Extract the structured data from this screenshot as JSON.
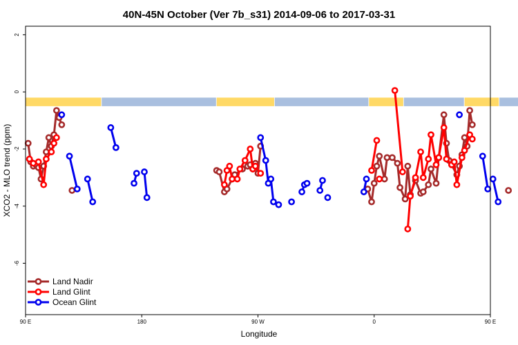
{
  "chart_data": {
    "type": "line",
    "title": "40N-45N October (Ver 7b_s31)   2014-09-06 to 2017-03-31",
    "xlabel": "Longitude",
    "ylabel": "XCO2 - MLO trend (ppm)",
    "xlim": [
      90,
      450
    ],
    "ylim": [
      -7.8,
      2.3
    ],
    "x_ticks": [
      {
        "value": 90,
        "label": "90 E"
      },
      {
        "value": 180,
        "label": "180"
      },
      {
        "value": 270,
        "label": "90 W"
      },
      {
        "value": 360,
        "label": "0"
      },
      {
        "value": 450,
        "label": "90 E"
      },
      {
        "value": 540,
        "label": "180"
      }
    ],
    "y_ticks": [
      2,
      0,
      -2,
      -4,
      -6
    ],
    "legend_position": "bottom-left",
    "land_sea_band": {
      "y_range": [
        -0.5,
        -0.2
      ],
      "land_color": "#FFD966",
      "sea_color": "#A9BFDF",
      "land_segments": [
        [
          90,
          148
        ],
        [
          238,
          282
        ],
        [
          356,
          382
        ],
        [
          430,
          456
        ]
      ],
      "sea_segments": [
        [
          149,
          237
        ],
        [
          283,
          355
        ],
        [
          383,
          429
        ],
        [
          457,
          492
        ]
      ]
    },
    "series": [
      {
        "name": "Land Nadir",
        "color": "#A52A2A",
        "segments": [
          [
            [
              92,
              -1.8
            ],
            [
              94,
              -2.45
            ],
            [
              96,
              -2.6
            ],
            [
              98,
              -2.55
            ],
            [
              100,
              -2.65
            ],
            [
              102,
              -3.05
            ],
            [
              104,
              -2.6
            ],
            [
              106,
              -2.1
            ],
            [
              108,
              -1.6
            ],
            [
              110,
              -1.9
            ],
            [
              112,
              -1.5
            ],
            [
              114,
              -0.65
            ],
            [
              116,
              -0.9
            ],
            [
              118,
              -1.15
            ]
          ],
          [
            [
              126,
              -3.45
            ]
          ],
          [
            [
              238,
              -2.75
            ],
            [
              240,
              -2.8
            ],
            [
              244,
              -3.5
            ],
            [
              246,
              -3.4
            ],
            [
              250,
              -3.05
            ],
            [
              252,
              -2.9
            ],
            [
              258,
              -2.7
            ],
            [
              260,
              -2.55
            ],
            [
              262,
              -2.6
            ],
            [
              264,
              -2.55
            ],
            [
              266,
              -2.7
            ],
            [
              268,
              -2.5
            ],
            [
              270,
              -2.85
            ],
            [
              272,
              -1.9
            ]
          ],
          [
            [
              355,
              -3.4
            ],
            [
              358,
              -3.85
            ],
            [
              360,
              -3.2
            ],
            [
              362,
              -2.6
            ],
            [
              364,
              -2.25
            ],
            [
              368,
              -3.05
            ],
            [
              370,
              -2.3
            ],
            [
              374,
              -2.3
            ],
            [
              378,
              -2.5
            ],
            [
              380,
              -3.35
            ],
            [
              384,
              -3.75
            ],
            [
              386,
              -2.6
            ],
            [
              388,
              -3.6
            ],
            [
              392,
              -3.1
            ],
            [
              396,
              -3.55
            ],
            [
              398,
              -3.5
            ],
            [
              402,
              -3.25
            ],
            [
              404,
              -2.7
            ],
            [
              408,
              -3.2
            ],
            [
              410,
              -2.3
            ],
            [
              414,
              -0.8
            ],
            [
              416,
              -1.8
            ],
            [
              418,
              -2.4
            ],
            [
              420,
              -2.55
            ],
            [
              424,
              -2.9
            ],
            [
              426,
              -2.6
            ],
            [
              428,
              -2.2
            ],
            [
              430,
              -1.6
            ],
            [
              432,
              -1.9
            ],
            [
              434,
              -0.65
            ],
            [
              436,
              -1.15
            ]
          ],
          [
            [
              464,
              -3.45
            ]
          ]
        ]
      },
      {
        "name": "Land Glint",
        "color": "#FF0000",
        "segments": [
          [
            [
              93,
              -2.35
            ],
            [
              96,
              -2.5
            ],
            [
              100,
              -2.45
            ],
            [
              104,
              -3.25
            ],
            [
              106,
              -2.35
            ],
            [
              110,
              -2.1
            ],
            [
              112,
              -1.8
            ],
            [
              114,
              -1.6
            ]
          ],
          [
            [
              244,
              -3.25
            ],
            [
              246,
              -2.75
            ],
            [
              248,
              -2.6
            ],
            [
              250,
              -3.05
            ],
            [
              254,
              -3.05
            ],
            [
              256,
              -2.7
            ],
            [
              260,
              -2.4
            ],
            [
              264,
              -2.0
            ],
            [
              266,
              -2.7
            ],
            [
              268,
              -2.6
            ],
            [
              272,
              -2.85
            ]
          ],
          [
            [
              358,
              -2.75
            ],
            [
              362,
              -1.7
            ]
          ],
          [
            [
              364,
              -3.05
            ]
          ],
          [
            [
              376,
              0.05
            ],
            [
              382,
              -2.8
            ]
          ],
          [
            [
              386,
              -4.8
            ],
            [
              388,
              -3.65
            ],
            [
              392,
              -3.0
            ],
            [
              396,
              -2.1
            ],
            [
              398,
              -3.0
            ],
            [
              402,
              -2.35
            ],
            [
              404,
              -1.5
            ],
            [
              408,
              -2.55
            ],
            [
              410,
              -2.3
            ],
            [
              414,
              -1.25
            ],
            [
              416,
              -2.35
            ],
            [
              420,
              -2.55
            ],
            [
              422,
              -2.45
            ],
            [
              424,
              -3.25
            ],
            [
              428,
              -2.3
            ],
            [
              430,
              -2.05
            ],
            [
              434,
              -1.5
            ],
            [
              436,
              -1.65
            ]
          ]
        ]
      },
      {
        "name": "Ocean Glint",
        "color": "#0000EE",
        "segments": [
          [
            [
              118,
              -0.8
            ]
          ],
          [
            [
              124,
              -2.25
            ],
            [
              130,
              -3.4
            ]
          ],
          [
            [
              138,
              -3.05
            ],
            [
              142,
              -3.85
            ]
          ],
          [
            [
              156,
              -1.25
            ],
            [
              160,
              -1.95
            ]
          ],
          [
            [
              174,
              -3.2
            ],
            [
              176,
              -2.85
            ]
          ],
          [
            [
              182,
              -2.8
            ],
            [
              184,
              -3.7
            ]
          ],
          [
            [
              272,
              -1.6
            ],
            [
              276,
              -2.4
            ],
            [
              278,
              -3.2
            ],
            [
              280,
              -3.05
            ],
            [
              282,
              -3.85
            ],
            [
              286,
              -3.95
            ]
          ],
          [
            [
              296,
              -3.85
            ]
          ],
          [
            [
              304,
              -3.5
            ],
            [
              306,
              -3.25
            ],
            [
              308,
              -3.2
            ]
          ],
          [
            [
              318,
              -3.45
            ],
            [
              320,
              -3.1
            ]
          ],
          [
            [
              324,
              -3.7
            ]
          ],
          [
            [
              352,
              -3.5
            ],
            [
              354,
              -3.05
            ]
          ],
          [
            [
              426,
              -0.8
            ]
          ],
          [
            [
              444,
              -2.25
            ],
            [
              448,
              -3.4
            ]
          ],
          [
            [
              452,
              -3.05
            ],
            [
              456,
              -3.85
            ]
          ]
        ]
      }
    ]
  }
}
